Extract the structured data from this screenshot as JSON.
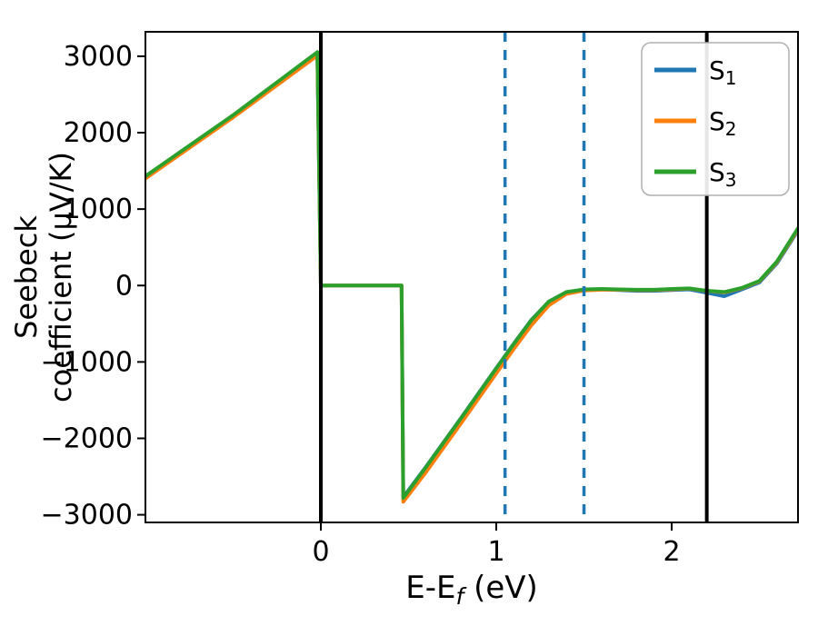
{
  "chart_data": {
    "type": "line",
    "title": "",
    "xlabel": {
      "pre": "E-E",
      "sub": "f",
      "post": " (eV)"
    },
    "ylabel_lines": [
      "Seebeck",
      "coefficient  (μV/K)"
    ],
    "xlim": [
      -1.0,
      2.72
    ],
    "ylim": [
      -3100,
      3320
    ],
    "xticks": [
      0,
      1,
      2
    ],
    "yticks": [
      -3000,
      -2000,
      -1000,
      0,
      1000,
      2000,
      3000
    ],
    "background": "#ffffff",
    "axis_color": "#000000",
    "grid": false,
    "legend": {
      "position": "upper right"
    },
    "series": [
      {
        "name": "S",
        "sub": "1",
        "color": "#1f77b4",
        "x": [
          -1.0,
          -0.5,
          -0.02,
          0.0,
          0.46,
          0.47,
          0.6,
          0.8,
          1.0,
          1.1,
          1.2,
          1.3,
          1.4,
          1.5,
          1.6,
          1.7,
          1.8,
          1.9,
          2.0,
          2.1,
          2.2,
          2.3,
          2.4,
          2.5,
          2.6,
          2.72
        ],
        "y": [
          1410,
          2210,
          3020,
          0,
          0,
          -2770,
          -2370,
          -1730,
          -1080,
          -760,
          -450,
          -210,
          -90,
          -55,
          -50,
          -60,
          -70,
          -70,
          -60,
          -50,
          -95,
          -140,
          -50,
          40,
          290,
          720
        ]
      },
      {
        "name": "S",
        "sub": "2",
        "color": "#ff7f0e",
        "x": [
          -1.0,
          -0.5,
          -0.02,
          0.0,
          0.46,
          0.47,
          0.6,
          0.8,
          1.0,
          1.1,
          1.2,
          1.3,
          1.4,
          1.5,
          1.6,
          1.7,
          1.8,
          1.9,
          2.0,
          2.1,
          2.2,
          2.3,
          2.4,
          2.5,
          2.6,
          2.72
        ],
        "y": [
          1400,
          2200,
          3010,
          0,
          0,
          -2830,
          -2440,
          -1800,
          -1150,
          -830,
          -520,
          -260,
          -110,
          -65,
          -55,
          -55,
          -60,
          -60,
          -50,
          -40,
          -70,
          -90,
          -35,
          55,
          305,
          735
        ]
      },
      {
        "name": "S",
        "sub": "3",
        "color": "#2ca02c",
        "x": [
          -1.0,
          -0.5,
          -0.02,
          0.0,
          0.46,
          0.47,
          0.6,
          0.8,
          1.0,
          1.1,
          1.2,
          1.3,
          1.4,
          1.5,
          1.6,
          1.7,
          1.8,
          1.9,
          2.0,
          2.1,
          2.2,
          2.3,
          2.4,
          2.5,
          2.6,
          2.72
        ],
        "y": [
          1430,
          2230,
          3055,
          0,
          0,
          -2780,
          -2375,
          -1735,
          -1085,
          -765,
          -455,
          -210,
          -85,
          -50,
          -45,
          -50,
          -55,
          -55,
          -45,
          -38,
          -68,
          -85,
          -30,
          60,
          315,
          750
        ]
      }
    ],
    "vlines": [
      {
        "x": 0.0,
        "style": "solid",
        "color": "#000000"
      },
      {
        "x": 2.2,
        "style": "solid",
        "color": "#000000"
      },
      {
        "x": 1.05,
        "style": "dashed",
        "color": "#1f77b4"
      },
      {
        "x": 1.5,
        "style": "dashed",
        "color": "#1f77b4"
      }
    ]
  }
}
